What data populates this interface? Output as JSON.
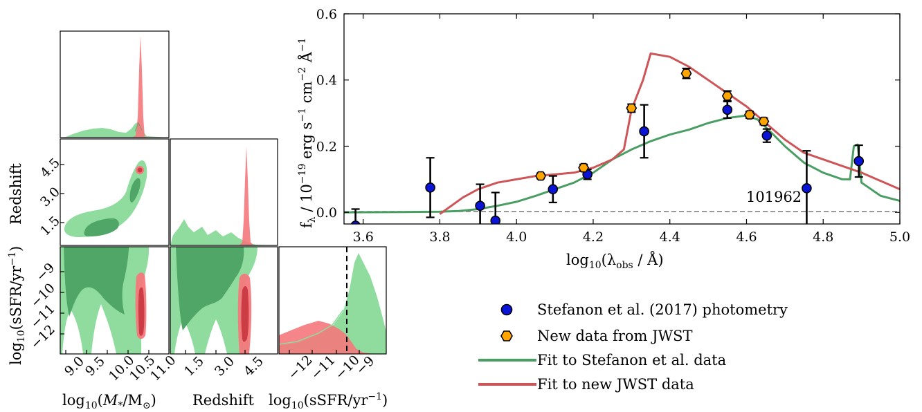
{
  "colors": {
    "green_fill_outer": "#8fdc9e",
    "green_fill_inner": "#4fa666",
    "green_line": "#4a9e63",
    "red_fill": "#f4787c",
    "red_fill_dark": "#cc3c44",
    "red_line": "#cd5457",
    "blue_point": "#0a14d6",
    "orange_point": "#ffa500"
  },
  "main_sed": {
    "id_label": "101962",
    "xlabel_base": "log",
    "xlabel_sub": "10",
    "xlabel_rest": "(λ",
    "xlabel_sub2": "obs",
    "xlabel_tail": " / Å)",
    "ylabel": "f_λ / 10^-19 erg s^-1 cm^-2 Å^-1",
    "ylabel_parts": {
      "a": "f",
      "b": "λ",
      "c": " / 10",
      "d": "−19",
      "e": " erg s",
      "f": "−1",
      "g": " cm",
      "h": "−2",
      "i": " Å",
      "j": "−1"
    },
    "x_ticks": [
      "3.6",
      "3.8",
      "4.0",
      "4.2",
      "4.4",
      "4.6",
      "4.8",
      "5.0"
    ],
    "y_ticks": [
      "0.0",
      "0.2",
      "0.4",
      "0.6"
    ]
  },
  "legend": {
    "stefanon": "Stefanon et al. (2017) photometry",
    "jwst": "New data from JWST",
    "fit_stefanon": "Fit to Stefanon et al. data",
    "fit_jwst": "Fit to new JWST data"
  },
  "corner": {
    "xlabel_mass": "log10(M*/M⊙)",
    "xlabel_mass_parts": {
      "a": "log",
      "b": "10",
      "c": "(",
      "d": "M",
      "e": "*",
      "f": "/M",
      "g": "⊙",
      "h": ")"
    },
    "xlabel_z": "Redshift",
    "xlabel_ssfr": "log10(sSFR/yr^-1)",
    "xlabel_ssfr_parts": {
      "a": "log",
      "b": "10",
      "c": "(sSFR/yr",
      "d": "−1",
      "e": ")"
    },
    "ylabel_z": "Redshift",
    "ylabel_ssfr": "log10(sSFR/yr^-1)",
    "mass_ticks": [
      "9.0",
      "9.5",
      "10.0",
      "10.5",
      "11.0"
    ],
    "z_ticks": [
      "1.5",
      "3.0",
      "4.5"
    ],
    "ssfr_ticks_x": [
      "−12",
      "−11",
      "−10",
      "−9"
    ],
    "z_ticks_y": [
      "1.5",
      "3.0",
      "4.5"
    ],
    "ssfr_ticks_y": [
      "−9",
      "−10",
      "−11",
      "−12"
    ]
  },
  "chart_data": [
    {
      "type": "scatter",
      "title": "",
      "xlabel": "log10(λobs / Å)",
      "ylabel": "fλ / 10^-19 erg s^-1 cm^-2 Å^-1",
      "xlim": [
        3.55,
        5.0
      ],
      "ylim": [
        -0.035,
        0.6
      ],
      "grid": false,
      "legend_position": "below-right",
      "annotation": "101962",
      "series": [
        {
          "name": "Stefanon et al. (2017) photometry",
          "marker": "circle",
          "points": [
            {
              "x": 3.58,
              "y": -0.04,
              "yerr_lo": 0.05,
              "yerr_hi": 0.05
            },
            {
              "x": 3.775,
              "y": 0.075,
              "yerr_lo": 0.09,
              "yerr_hi": 0.09
            },
            {
              "x": 3.905,
              "y": 0.02,
              "yerr_lo": 0.065,
              "yerr_hi": 0.065
            },
            {
              "x": 3.945,
              "y": -0.025,
              "yerr_lo": 0.085,
              "yerr_hi": 0.085
            },
            {
              "x": 4.095,
              "y": 0.07,
              "yerr_lo": 0.04,
              "yerr_hi": 0.04
            },
            {
              "x": 4.185,
              "y": 0.115,
              "yerr_lo": 0.015,
              "yerr_hi": 0.015
            },
            {
              "x": 4.333,
              "y": 0.245,
              "yerr_lo": 0.08,
              "yerr_hi": 0.08
            },
            {
              "x": 4.55,
              "y": 0.31,
              "yerr_lo": 0.025,
              "yerr_hi": 0.025
            },
            {
              "x": 4.653,
              "y": 0.232,
              "yerr_lo": 0.02,
              "yerr_hi": 0.02
            },
            {
              "x": 4.757,
              "y": 0.073,
              "yerr_lo": 0.113,
              "yerr_hi": 0.113
            },
            {
              "x": 4.893,
              "y": 0.155,
              "yerr_lo": 0.048,
              "yerr_hi": 0.048
            }
          ]
        },
        {
          "name": "New data from JWST",
          "marker": "hexagon",
          "points": [
            {
              "x": 4.063,
              "y": 0.11,
              "yerr_lo": 0.008,
              "yerr_hi": 0.008
            },
            {
              "x": 4.175,
              "y": 0.135,
              "yerr_lo": 0.01,
              "yerr_hi": 0.01
            },
            {
              "x": 4.3,
              "y": 0.315,
              "yerr_lo": 0.012,
              "yerr_hi": 0.012
            },
            {
              "x": 4.443,
              "y": 0.42,
              "yerr_lo": 0.015,
              "yerr_hi": 0.015
            },
            {
              "x": 4.55,
              "y": 0.352,
              "yerr_lo": 0.015,
              "yerr_hi": 0.015
            },
            {
              "x": 4.608,
              "y": 0.295,
              "yerr_lo": 0.01,
              "yerr_hi": 0.01
            },
            {
              "x": 4.645,
              "y": 0.275,
              "yerr_lo": 0.01,
              "yerr_hi": 0.01
            }
          ]
        }
      ],
      "lines": [
        {
          "name": "Fit to Stefanon et al. data",
          "points": [
            [
              3.55,
              0.0
            ],
            [
              3.7,
              0.001
            ],
            [
              3.8,
              0.002
            ],
            [
              3.85,
              0.004
            ],
            [
              3.9,
              0.01
            ],
            [
              3.95,
              0.02
            ],
            [
              4.0,
              0.032
            ],
            [
              4.05,
              0.05
            ],
            [
              4.1,
              0.07
            ],
            [
              4.15,
              0.09
            ],
            [
              4.2,
              0.12
            ],
            [
              4.25,
              0.16
            ],
            [
              4.3,
              0.19
            ],
            [
              4.35,
              0.215
            ],
            [
              4.4,
              0.235
            ],
            [
              4.45,
              0.25
            ],
            [
              4.5,
              0.27
            ],
            [
              4.55,
              0.285
            ],
            [
              4.6,
              0.293
            ],
            [
              4.63,
              0.28
            ],
            [
              4.67,
              0.235
            ],
            [
              4.7,
              0.2
            ],
            [
              4.75,
              0.15
            ],
            [
              4.8,
              0.12
            ],
            [
              4.85,
              0.1
            ],
            [
              4.87,
              0.1
            ],
            [
              4.88,
              0.2
            ],
            [
              4.89,
              0.205
            ],
            [
              4.9,
              0.09
            ],
            [
              4.95,
              0.05
            ],
            [
              5.0,
              0.035
            ]
          ]
        },
        {
          "name": "Fit to new JWST data",
          "points": [
            [
              3.8,
              -0.005
            ],
            [
              3.83,
              0.02
            ],
            [
              3.86,
              0.045
            ],
            [
              3.9,
              0.07
            ],
            [
              3.95,
              0.09
            ],
            [
              4.0,
              0.1
            ],
            [
              4.05,
              0.11
            ],
            [
              4.1,
              0.115
            ],
            [
              4.15,
              0.12
            ],
            [
              4.2,
              0.135
            ],
            [
              4.25,
              0.16
            ],
            [
              4.28,
              0.19
            ],
            [
              4.3,
              0.31
            ],
            [
              4.33,
              0.4
            ],
            [
              4.35,
              0.48
            ],
            [
              4.4,
              0.47
            ],
            [
              4.45,
              0.44
            ],
            [
              4.5,
              0.4
            ],
            [
              4.55,
              0.36
            ],
            [
              4.6,
              0.32
            ],
            [
              4.65,
              0.27
            ],
            [
              4.7,
              0.22
            ],
            [
              4.75,
              0.18
            ],
            [
              4.8,
              0.16
            ],
            [
              4.85,
              0.14
            ],
            [
              4.9,
              0.12
            ],
            [
              4.95,
              0.095
            ],
            [
              5.0,
              0.07
            ]
          ]
        }
      ]
    },
    {
      "type": "area",
      "panel": "corner plot (posteriors)",
      "parameters": [
        "log10(M*/M⊙)",
        "Redshift",
        "log10(sSFR/yr^-1)"
      ],
      "ranges": {
        "mass": [
          8.8,
          11.3
        ],
        "redshift": [
          0.0,
          5.5
        ],
        "ssfr": [
          -12.8,
          -8.2
        ]
      },
      "marginals": {
        "mass": {
          "stefanon_peak": 9.8,
          "jwst_peak": 10.75
        },
        "redshift": {
          "stefanon_range": [
            0.5,
            5.0
          ],
          "jwst_peak": 4.4
        },
        "ssfr": {
          "stefanon_peak": -9.2,
          "jwst_peak": -10.9,
          "marker_line": -9.95
        }
      }
    }
  ]
}
